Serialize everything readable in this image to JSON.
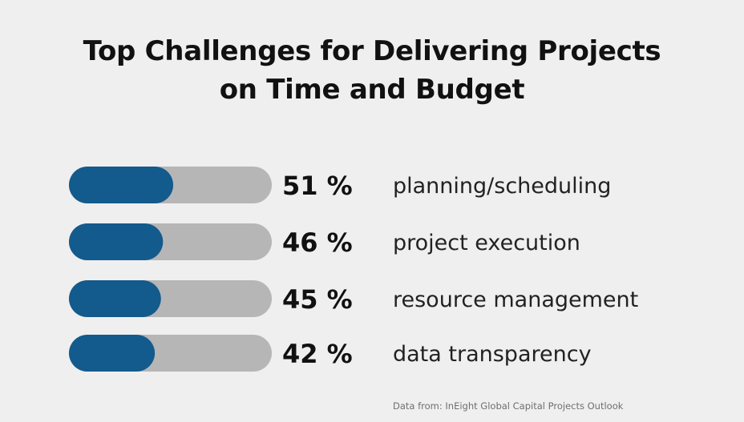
{
  "chart_data": {
    "type": "bar",
    "title_lines": [
      "Top Challenges for Delivering Projects",
      "on Time and Budget"
    ],
    "categories": [
      "planning/scheduling",
      "project execution",
      "resource management",
      "data transparency"
    ],
    "values": [
      51,
      46,
      45,
      42
    ],
    "value_labels": [
      "51 %",
      "46 %",
      "45 %",
      "42 %"
    ],
    "unit": "%",
    "xlim": [
      0,
      100
    ],
    "grid": false,
    "legend": "none",
    "source": "Data from: InEight Global Capital Projects Outlook"
  },
  "colors": {
    "background": "#efefef",
    "bar_fill": "#135a8d",
    "bar_track": "#b6b6b6",
    "value_text": "#111111",
    "label_text": "#222222",
    "source_text": "#6f6f6f"
  }
}
